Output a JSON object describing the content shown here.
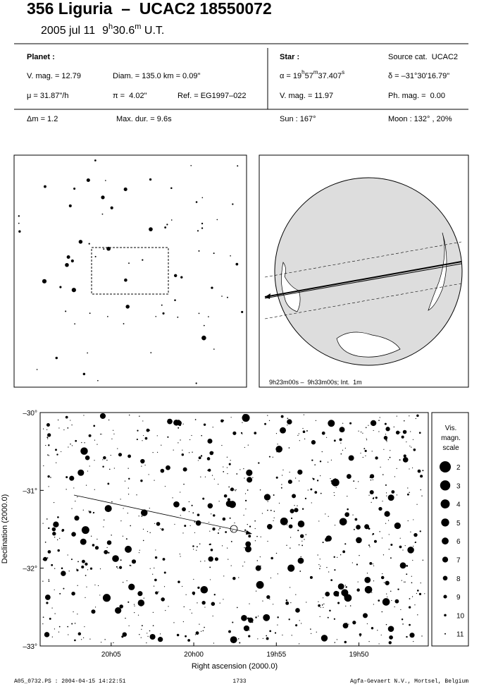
{
  "header": {
    "title": "356 Liguria  –  UCAC2 18550072",
    "date": "2005 jul 11",
    "time": [
      "9",
      "h",
      "30.6",
      "m",
      " U.T."
    ]
  },
  "planet": {
    "heading": "Planet :",
    "vmag": "V. mag. = 12.79",
    "diam": "Diam. = 135.0 km = 0.09\"",
    "motion": "μ = 31.87\"/h",
    "parallax": "π =  4.02\"",
    "ref": "Ref. = EG1997–022"
  },
  "star": {
    "heading": "Star :",
    "source": "Source cat.  UCAC2",
    "ra": [
      "α = 19",
      "h",
      "57",
      "m",
      "37.407",
      "s"
    ],
    "dec": "δ = –31°30'16.79\"",
    "vmag": "V. mag. = 11.97",
    "phmag": "Ph. mag. =  0.00"
  },
  "event": {
    "dm": "Δm = 1.2",
    "maxdur": "Max. dur. = 9.6s",
    "sun": "Sun : 167°",
    "moon": "Moon : 132° , 20%"
  },
  "globe": {
    "caption": "9h23m00s –  9h33m00s; Int.  1m"
  },
  "chart": {
    "xlabel": "Right ascension (2000.0)",
    "ylabel": "Declination (2000.0)",
    "xlim": [
      1209.3,
      1185.8
    ],
    "xticks": [
      {
        "value": 1205,
        "label": "20h05"
      },
      {
        "value": 1200,
        "label": "20h00"
      },
      {
        "value": 1195,
        "label": "19h55"
      },
      {
        "value": 1190,
        "label": "19h50"
      }
    ],
    "ylim": [
      -30,
      -33
    ],
    "yticks": [
      {
        "value": -30,
        "label": "–30°"
      },
      {
        "value": -31,
        "label": "–31°"
      },
      {
        "value": -32,
        "label": "–32°"
      },
      {
        "value": -33,
        "label": "–33°"
      }
    ],
    "legend": {
      "title": [
        "Vis.",
        "magn.",
        "scale"
      ],
      "magnitudes": [
        2,
        3,
        4,
        5,
        6,
        7,
        8,
        9,
        10,
        11
      ]
    }
  },
  "footer": {
    "file": "A05_0732.PS : 2004-04-15 14:22:51",
    "page": "1733",
    "credit": "Agfa-Gevaert N.V., Mortsel, Belgium"
  }
}
